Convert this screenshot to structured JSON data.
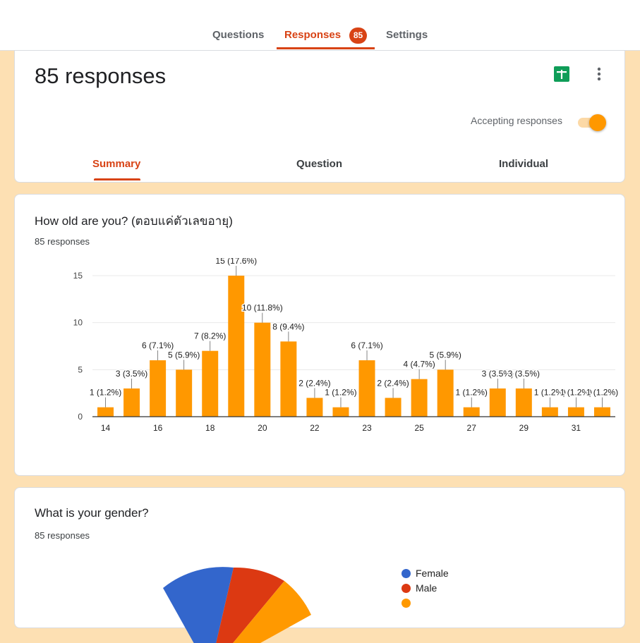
{
  "top_tabs": {
    "questions": "Questions",
    "responses": "Responses",
    "responses_badge": "85",
    "settings": "Settings"
  },
  "header_card": {
    "title": "85 responses",
    "accepting_label": "Accepting responses",
    "accepting": true,
    "sheets_icon": "google-sheets-icon",
    "more_icon": "more-vert-icon"
  },
  "sub_tabs": {
    "summary": "Summary",
    "question": "Question",
    "individual": "Individual"
  },
  "colors": {
    "accent": "#d84315",
    "bar": "#ff9800",
    "female": "#3366cc",
    "male": "#dc3912",
    "third": "#ff9900"
  },
  "age_question": {
    "title": "How old are you? (ตอบแค่ตัวเลขอายุ)",
    "count_label": "85 responses",
    "chart_data": {
      "type": "bar",
      "categories": [
        "14",
        "15",
        "16",
        "17",
        "18",
        "19",
        "20",
        "21",
        "22",
        "22",
        "23",
        "24",
        "25",
        "26",
        "27",
        "28",
        "29",
        "30",
        "31",
        "32"
      ],
      "tick_labels": [
        "14",
        "16",
        "18",
        "20",
        "22",
        "23",
        "25",
        "27",
        "29",
        "31"
      ],
      "values": [
        1,
        3,
        6,
        5,
        7,
        15,
        10,
        8,
        2,
        1,
        6,
        2,
        4,
        5,
        1,
        3,
        3,
        1,
        1,
        1
      ],
      "data_labels": [
        "1 (1.2%)",
        "3 (3.5%)",
        "6 (7.1%)",
        "5 (5.9%)",
        "7 (8.2%)",
        "15 (17.6%)",
        "10 (11.8%)",
        "8 (9.4%)",
        "2 (2.4%)",
        "1 (1.2%)",
        "6 (7.1%)",
        "2 (2.4%)",
        "4 (4.7%)",
        "5 (5.9%)",
        "1 (1.2%)",
        "3 (3.5%)",
        "3 (3.5%)",
        "1 (1.2%)",
        "1 (1.2%)",
        "1 (1.2%)"
      ],
      "y_ticks": [
        "0",
        "5",
        "10",
        "15"
      ],
      "ylim": [
        0,
        15
      ],
      "grid": true
    }
  },
  "gender_question": {
    "title": "What is your gender?",
    "count_label": "85 responses",
    "chart_data": {
      "type": "pie",
      "legend": [
        "Female",
        "Male"
      ],
      "legend_placement": "right"
    }
  }
}
